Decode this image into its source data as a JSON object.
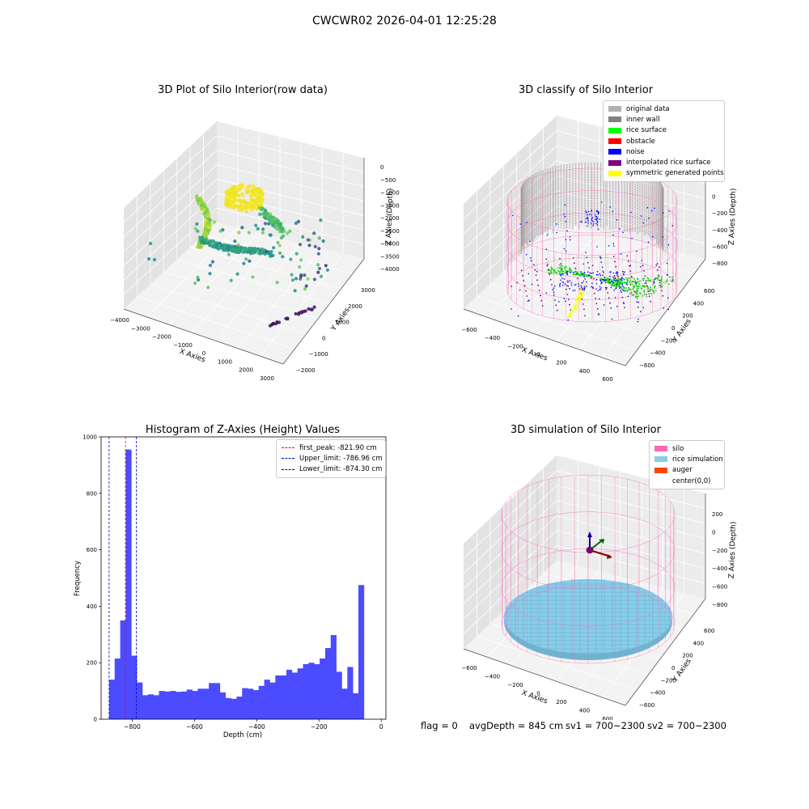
{
  "figure": {
    "suptitle": "CWCWR02 2026-04-01 12:25:28",
    "footer": {
      "flag": "flag = 0",
      "avg": "avgDepth = 845 cm",
      "sv1": "sv1 = 700~2300",
      "sv2": "sv2 = 700~2300"
    }
  },
  "colors": {
    "hist_bar": "#4b4bff",
    "peak_line": "#ff0000",
    "limit_line": "#0000cc",
    "silo_wire": "#ff69b4",
    "rice_sim": "#87ceeb"
  },
  "chart_data": [
    {
      "id": "raw",
      "type": "scatter3d",
      "title": "3D Plot of Silo Interior(row data)",
      "xlabel": "X Axies",
      "ylabel": "Y Axies",
      "zlabel": "Z Axies (Depth)",
      "xticks": [
        "−4000",
        "−3000",
        "−2000",
        "−1000",
        "0",
        "1000",
        "2000",
        "3000"
      ],
      "yticks": [
        "−2000",
        "−1000",
        "0",
        "1000",
        "2000",
        "3000"
      ],
      "zticks": [
        "0",
        "−500",
        "−1000",
        "−1500",
        "−2000",
        "−2500",
        "−3000",
        "−3500",
        "−4000"
      ],
      "xlim": [
        -4000,
        3000
      ],
      "ylim": [
        -2000,
        3000
      ],
      "zlim": [
        -4000,
        0
      ]
    },
    {
      "id": "classify",
      "type": "scatter3d",
      "title": "3D classify of Silo Interior",
      "xlabel": "X Axies",
      "ylabel": "Y Axies",
      "zlabel": "Z Axies (Depth)",
      "xticks": [
        "−600",
        "−400",
        "−200",
        "0",
        "200",
        "400",
        "600"
      ],
      "yticks": [
        "−600",
        "−400",
        "−200",
        "0",
        "200",
        "400",
        "600"
      ],
      "zticks": [
        "200",
        "0",
        "−200",
        "−400",
        "−600",
        "−800"
      ],
      "legend": [
        {
          "label": "original data",
          "color": "#b0b0b0"
        },
        {
          "label": "inner wall",
          "color": "#808080"
        },
        {
          "label": "rice surface",
          "color": "#00ff00"
        },
        {
          "label": "obstacle",
          "color": "#ff0000"
        },
        {
          "label": "noise",
          "color": "#0000ff"
        },
        {
          "label": "interpolated rice surface",
          "color": "#800080"
        },
        {
          "label": "symmetric generated points",
          "color": "#ffff00"
        }
      ]
    },
    {
      "id": "hist",
      "type": "bar",
      "title": "Histogram of Z-Axies (Height) Values",
      "xlabel": "Depth (cm)",
      "ylabel": "Frequency",
      "xlim": [
        -900,
        15
      ],
      "ylim": [
        0,
        1000
      ],
      "xticks": [
        -800,
        -600,
        -400,
        -200,
        0
      ],
      "yticks": [
        0,
        200,
        400,
        600,
        800,
        1000
      ],
      "bin_start": -874.3,
      "bin_width": 17.8,
      "values": [
        140,
        215,
        350,
        955,
        225,
        130,
        85,
        88,
        85,
        100,
        98,
        100,
        97,
        98,
        105,
        100,
        108,
        108,
        128,
        128,
        95,
        75,
        72,
        80,
        110,
        108,
        103,
        118,
        140,
        130,
        155,
        155,
        175,
        165,
        180,
        195,
        200,
        195,
        215,
        252,
        298,
        168,
        108,
        185,
        92,
        475
      ],
      "vlines": [
        {
          "value": -821.9,
          "label": "first_peak: -821.90 cm",
          "color": "#ff0000"
        },
        {
          "value": -786.96,
          "label": "Upper_limit: -786.96 cm",
          "color": "#0000cc"
        },
        {
          "value": -874.3,
          "label": "Lower_limit: -874.30 cm",
          "color": "#0000cc"
        }
      ]
    },
    {
      "id": "sim",
      "type": "surface3d",
      "title": "3D simulation of Silo Interior",
      "xlabel": "X Axies",
      "ylabel": "Y Axies",
      "zlabel": "Z Axies (Depth)",
      "xticks": [
        "−600",
        "−400",
        "−200",
        "0",
        "200",
        "400",
        "600"
      ],
      "yticks": [
        "−600",
        "−400",
        "−200",
        "0",
        "200",
        "400",
        "600"
      ],
      "zticks": [
        "200",
        "0",
        "−200",
        "−400",
        "−600",
        "−800"
      ],
      "legend": [
        {
          "label": "silo",
          "color": "#ff69b4"
        },
        {
          "label": "rice simulation",
          "color": "#87ceeb"
        },
        {
          "label": "auger",
          "color": "#ff4500"
        },
        {
          "label": "center(0,0)",
          "color": ""
        }
      ]
    }
  ]
}
